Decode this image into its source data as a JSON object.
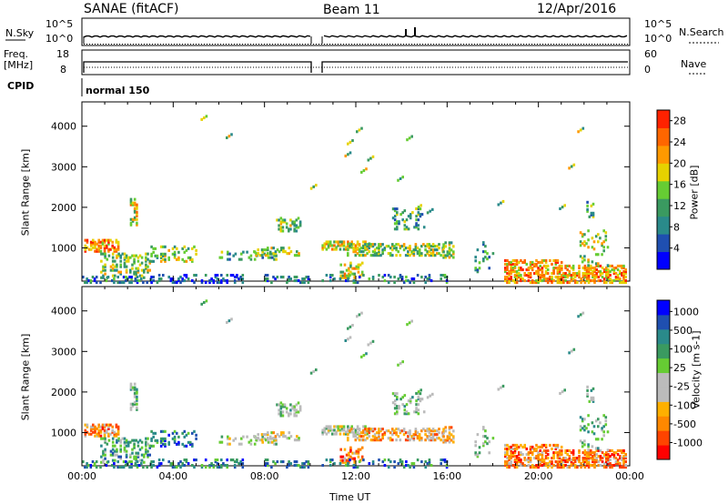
{
  "header": {
    "station": "SANAE (fitACF)",
    "beam": "Beam 11",
    "date": "12/Apr/2016"
  },
  "panels": {
    "nsky": {
      "label": "N.Sky",
      "top_tick": "10^5",
      "bottom_tick": "10^0"
    },
    "nsearch": {
      "label": "N.Search",
      "top_tick": "10^5",
      "bottom_tick": "10^0"
    },
    "freq": {
      "label_top": "Freq.",
      "label_bottom": "[MHz]",
      "top_tick": "18",
      "bottom_tick": "8"
    },
    "nave": {
      "label": "Nave",
      "top_tick": "60",
      "bottom_tick": "0"
    },
    "cpid": {
      "label": "CPID",
      "mode": "normal 150"
    }
  },
  "colors": {
    "power": [
      "#0000ff",
      "#1f4fb0",
      "#2a8a8a",
      "#3a9a60",
      "#66cc33",
      "#e6d200",
      "#ff9900",
      "#ff6600",
      "#ff2200"
    ],
    "velocity": [
      "#ff0000",
      "#ff4400",
      "#ff8800",
      "#ffb000",
      "#bbbbbb",
      "#bbbbbb",
      "#66cc33",
      "#3a9a60",
      "#2a8a8a",
      "#1f4fb0",
      "#0000ff"
    ]
  },
  "chart_data": [
    {
      "type": "heatmap",
      "name": "power",
      "xlabel": "",
      "ylabel": "Slant Range [km]",
      "x_ticks": [
        "00:00",
        "04:00",
        "08:00",
        "12:00",
        "16:00",
        "20:00",
        "00:00"
      ],
      "xlim": [
        0,
        24
      ],
      "ylim": [
        180,
        4600
      ],
      "y_ticks": [
        1000,
        2000,
        3000,
        4000
      ],
      "colorbar_label": "Power [dB]",
      "colorbar_ticks": [
        4,
        8,
        12,
        16,
        20,
        24,
        28
      ],
      "colorbar_range": [
        0,
        30
      ]
    },
    {
      "type": "heatmap",
      "name": "velocity",
      "xlabel": "Time UT",
      "ylabel": "Slant Range [km]",
      "x_ticks": [
        "00:00",
        "04:00",
        "08:00",
        "12:00",
        "16:00",
        "20:00",
        "00:00"
      ],
      "xlim": [
        0,
        24
      ],
      "ylim": [
        180,
        4600
      ],
      "y_ticks": [
        1000,
        2000,
        3000,
        4000
      ],
      "colorbar_label": "Velocity [m s-1]",
      "colorbar_ticks": [
        1000,
        500,
        100,
        25,
        -25,
        -100,
        -500,
        -1000
      ]
    }
  ]
}
